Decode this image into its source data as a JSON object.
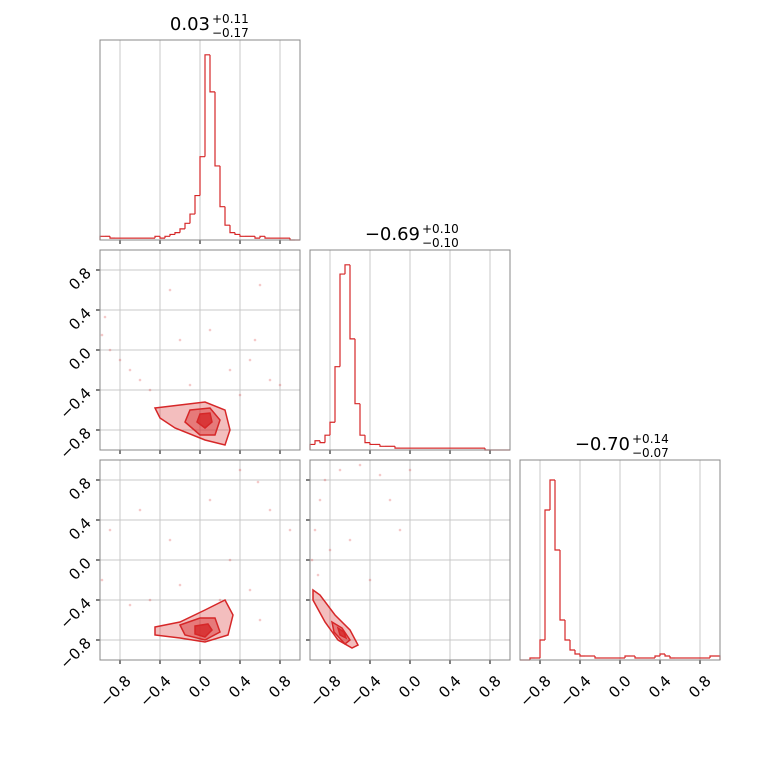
{
  "chart_data": [
    {
      "type": "histogram",
      "title": "0.03",
      "title_upper": "+0.11",
      "title_lower": "−0.17",
      "color": "#d62728",
      "grid": true,
      "bins": [
        -1,
        -0.95,
        -0.9,
        -0.85,
        -0.8,
        -0.75,
        -0.7,
        -0.65,
        -0.6,
        -0.55,
        -0.5,
        -0.45,
        -0.4,
        -0.35,
        -0.3,
        -0.25,
        -0.2,
        -0.15,
        -0.1,
        -0.05,
        0,
        0.05,
        0.1,
        0.15,
        0.2,
        0.25,
        0.3,
        0.35,
        0.4,
        0.45,
        0.5,
        0.55,
        0.6,
        0.65,
        0.7,
        0.75,
        0.8,
        0.85,
        0.9,
        0.95,
        1
      ],
      "counts": [
        2,
        2,
        1,
        1,
        1,
        1,
        1,
        1,
        1,
        1,
        1,
        2,
        1,
        2,
        3,
        4,
        6,
        9,
        14,
        24,
        45,
        100,
        80,
        40,
        18,
        8,
        4,
        3,
        2,
        2,
        2,
        1,
        2,
        1,
        1,
        1,
        1,
        1,
        0,
        0
      ],
      "xlim": [
        -1,
        1
      ],
      "ylim": [
        0,
        108
      ],
      "xticks": [
        -0.8,
        -0.4,
        0,
        0.4,
        0.8
      ]
    },
    {
      "type": "contour",
      "color": "#d62728",
      "grid": true,
      "xlim": [
        -1,
        1
      ],
      "ylim": [
        -1,
        1
      ],
      "xticks": [
        -0.8,
        -0.4,
        0,
        0.4,
        0.8
      ],
      "yticks": [
        {
          "value": -0.8,
          "label": "−0.8"
        },
        {
          "value": -0.4,
          "label": "−0.4"
        },
        {
          "value": 0,
          "label": "0.0"
        },
        {
          "value": 0.4,
          "label": "0.4"
        },
        {
          "value": 0.8,
          "label": "0.8"
        }
      ],
      "contours": [
        {
          "x": [
            -0.45,
            -0.2,
            0.05,
            0.25,
            0.3,
            0.25,
            0.05,
            -0.25,
            -0.4
          ],
          "y": [
            -0.58,
            -0.55,
            -0.52,
            -0.6,
            -0.8,
            -0.95,
            -0.9,
            -0.78,
            -0.68
          ]
        },
        {
          "x": [
            -0.1,
            0.1,
            0.2,
            0.15,
            0,
            -0.15
          ],
          "y": [
            -0.6,
            -0.58,
            -0.7,
            -0.85,
            -0.85,
            -0.72
          ]
        },
        {
          "x": [
            0,
            0.1,
            0.12,
            0.05,
            -0.03
          ],
          "y": [
            -0.64,
            -0.63,
            -0.72,
            -0.78,
            -0.72
          ]
        }
      ],
      "points": {
        "x": [
          -0.95,
          -0.98,
          -0.9,
          -0.7,
          -0.6,
          -0.5,
          -0.3,
          -0.2,
          0.1,
          0.3,
          0.5,
          0.6,
          0.7,
          0.8,
          0.55,
          -0.8,
          0.4,
          -0.1
        ],
        "y": [
          0.33,
          0.15,
          0.0,
          -0.2,
          -0.3,
          -0.4,
          0.6,
          0.1,
          0.2,
          -0.2,
          -0.1,
          0.65,
          -0.3,
          -0.35,
          0.1,
          -0.1,
          -0.45,
          -0.35
        ]
      }
    },
    {
      "type": "histogram",
      "title": "−0.69",
      "title_upper": "+0.10",
      "title_lower": "−0.10",
      "color": "#d62728",
      "grid": true,
      "bins": [
        -1,
        -0.95,
        -0.9,
        -0.85,
        -0.8,
        -0.75,
        -0.7,
        -0.65,
        -0.6,
        -0.55,
        -0.5,
        -0.45,
        -0.4,
        -0.35,
        -0.3,
        -0.25,
        -0.2,
        -0.15,
        -0.1,
        -0.05,
        0,
        0.05,
        0.1,
        0.15,
        0.2,
        0.25,
        0.3,
        0.35,
        0.4,
        0.45,
        0.5,
        0.55,
        0.6,
        0.65,
        0.7,
        0.75,
        0.8,
        0.85,
        0.9,
        0.95,
        1
      ],
      "counts": [
        3,
        5,
        4,
        8,
        15,
        45,
        95,
        100,
        60,
        25,
        8,
        4,
        3,
        3,
        2,
        2,
        2,
        1,
        1,
        1,
        1,
        1,
        1,
        1,
        1,
        1,
        1,
        1,
        1,
        1,
        1,
        1,
        1,
        1,
        1,
        0,
        0,
        0,
        0,
        0
      ],
      "xlim": [
        -1,
        1
      ],
      "ylim": [
        0,
        108
      ],
      "xticks": [
        -0.8,
        -0.4,
        0,
        0.4,
        0.8
      ]
    },
    {
      "type": "contour",
      "color": "#d62728",
      "grid": true,
      "xlim": [
        -1,
        1
      ],
      "ylim": [
        -1,
        1
      ],
      "xticks": [
        {
          "value": -0.8,
          "label": "−0.8"
        },
        {
          "value": -0.4,
          "label": "−0.4"
        },
        {
          "value": 0,
          "label": "0.0"
        },
        {
          "value": 0.4,
          "label": "0.4"
        },
        {
          "value": 0.8,
          "label": "0.8"
        }
      ],
      "yticks": [
        {
          "value": -0.8,
          "label": "−0.8"
        },
        {
          "value": -0.4,
          "label": "−0.4"
        },
        {
          "value": 0,
          "label": "0.0"
        },
        {
          "value": 0.4,
          "label": "0.4"
        },
        {
          "value": 0.8,
          "label": "0.8"
        }
      ],
      "contours": [
        {
          "x": [
            -0.45,
            -0.2,
            0.05,
            0.25,
            0.33,
            0.28,
            0.05,
            -0.2,
            -0.45
          ],
          "y": [
            -0.67,
            -0.62,
            -0.5,
            -0.4,
            -0.55,
            -0.75,
            -0.82,
            -0.78,
            -0.75
          ]
        },
        {
          "x": [
            -0.2,
            0,
            0.15,
            0.2,
            0.05,
            -0.15
          ],
          "y": [
            -0.65,
            -0.58,
            -0.58,
            -0.72,
            -0.8,
            -0.75
          ]
        },
        {
          "x": [
            -0.05,
            0.08,
            0.12,
            0.05,
            -0.05
          ],
          "y": [
            -0.66,
            -0.64,
            -0.7,
            -0.77,
            -0.74
          ]
        }
      ],
      "points": {
        "x": [
          0.58,
          -0.98,
          -0.9,
          -0.6,
          -0.3,
          0.1,
          0.3,
          0.5,
          0.7,
          0.9,
          -0.7,
          -0.2,
          0.4,
          0.2,
          -0.5,
          0.6
        ],
        "y": [
          0.78,
          -0.2,
          0.3,
          0.5,
          0.2,
          0.6,
          0.0,
          -0.3,
          0.5,
          0.3,
          -0.45,
          -0.25,
          0.9,
          -0.4,
          -0.4,
          -0.6
        ]
      }
    },
    {
      "type": "contour",
      "color": "#d62728",
      "grid": true,
      "xlim": [
        -1,
        1
      ],
      "ylim": [
        -1,
        1
      ],
      "xticks": [
        {
          "value": -0.8,
          "label": "−0.8"
        },
        {
          "value": -0.4,
          "label": "−0.4"
        },
        {
          "value": 0,
          "label": "0.0"
        },
        {
          "value": 0.4,
          "label": "0.4"
        },
        {
          "value": 0.8,
          "label": "0.8"
        }
      ],
      "yticks": [
        -0.8,
        -0.4,
        0,
        0.4,
        0.8
      ],
      "contours": [
        {
          "x": [
            -0.97,
            -0.9,
            -0.75,
            -0.6,
            -0.52,
            -0.58,
            -0.72,
            -0.85,
            -0.97
          ],
          "y": [
            -0.3,
            -0.35,
            -0.55,
            -0.7,
            -0.85,
            -0.88,
            -0.8,
            -0.62,
            -0.4
          ]
        },
        {
          "x": [
            -0.78,
            -0.68,
            -0.6,
            -0.65,
            -0.76
          ],
          "y": [
            -0.62,
            -0.68,
            -0.8,
            -0.84,
            -0.72
          ]
        },
        {
          "x": [
            -0.72,
            -0.66,
            -0.64,
            -0.7
          ],
          "y": [
            -0.68,
            -0.72,
            -0.78,
            -0.75
          ]
        }
      ],
      "points": {
        "x": [
          -0.98,
          -0.95,
          -0.9,
          -0.85,
          -0.7,
          -0.5,
          -0.3,
          -0.2,
          0.0,
          -0.1,
          -0.6,
          -0.4,
          -0.8,
          -0.92
        ],
        "y": [
          0.0,
          0.3,
          0.6,
          0.8,
          0.9,
          0.95,
          0.85,
          0.6,
          0.9,
          0.3,
          0.2,
          -0.2,
          0.1,
          -0.15
        ]
      }
    },
    {
      "type": "histogram",
      "title": "−0.70",
      "title_upper": "+0.14",
      "title_lower": "−0.07",
      "color": "#d62728",
      "grid": true,
      "bins": [
        -1,
        -0.95,
        -0.9,
        -0.85,
        -0.8,
        -0.75,
        -0.7,
        -0.65,
        -0.6,
        -0.55,
        -0.5,
        -0.45,
        -0.4,
        -0.35,
        -0.3,
        -0.25,
        -0.2,
        -0.15,
        -0.1,
        -0.05,
        0,
        0.05,
        0.1,
        0.15,
        0.2,
        0.25,
        0.3,
        0.35,
        0.4,
        0.45,
        0.5,
        0.55,
        0.6,
        0.65,
        0.7,
        0.75,
        0.8,
        0.85,
        0.9,
        0.95,
        1
      ],
      "counts": [
        0,
        0,
        1,
        1,
        10,
        75,
        90,
        55,
        20,
        10,
        5,
        3,
        2,
        2,
        2,
        1,
        1,
        1,
        1,
        1,
        1,
        2,
        2,
        1,
        1,
        1,
        1,
        2,
        3,
        2,
        1,
        1,
        1,
        1,
        1,
        1,
        1,
        1,
        2,
        2
      ],
      "xlim": [
        -1,
        1
      ],
      "ylim": [
        0,
        100
      ],
      "xticks": [
        {
          "value": -0.8,
          "label": "−0.8"
        },
        {
          "value": -0.4,
          "label": "−0.4"
        },
        {
          "value": 0,
          "label": "0.0"
        },
        {
          "value": 0.4,
          "label": "0.4"
        },
        {
          "value": 0.8,
          "label": "0.8"
        }
      ]
    }
  ]
}
